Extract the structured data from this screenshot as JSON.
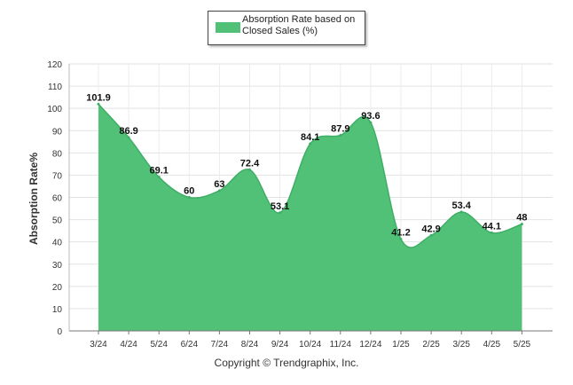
{
  "footer": "Copyright © Trendgraphix, Inc.",
  "chart_data": {
    "type": "area",
    "series": [
      {
        "name": "Absorption Rate based on Closed Sales (%)",
        "color": "#52c178",
        "values": [
          101.9,
          86.9,
          69.1,
          60,
          63,
          72.4,
          53.1,
          84.1,
          87.9,
          93.6,
          41.2,
          42.9,
          53.4,
          44.1,
          48
        ]
      }
    ],
    "categories": [
      "3/24",
      "4/24",
      "5/24",
      "6/24",
      "7/24",
      "8/24",
      "9/24",
      "10/24",
      "11/24",
      "12/24",
      "1/25",
      "2/25",
      "3/25",
      "4/25",
      "5/25"
    ],
    "data_labels": [
      "101.9",
      "86.9",
      "69.1",
      "60",
      "63",
      "72.4",
      "53.1",
      "84.1",
      "87.9",
      "93.6",
      "41.2",
      "42.9",
      "53.4",
      "44.1",
      "48"
    ],
    "ylabel": "Absorption Rate%",
    "xlabel": "",
    "ylim": [
      0,
      120
    ],
    "yticks": [
      "0",
      "10",
      "20",
      "30",
      "40",
      "50",
      "60",
      "70",
      "80",
      "90",
      "100",
      "110",
      "120"
    ],
    "grid": true,
    "legend": "top-center"
  }
}
